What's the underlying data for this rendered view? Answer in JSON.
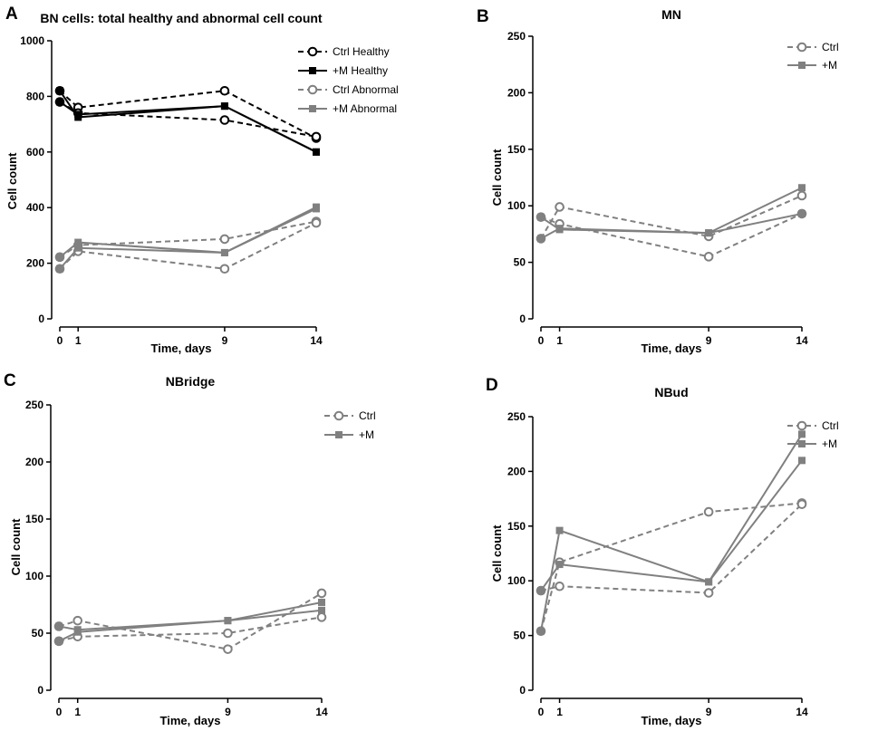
{
  "chart_data": [
    {
      "panel": "A",
      "type": "line",
      "title": "BN cells: total healthy and abnormal cell count",
      "xlabel": "Time, days",
      "ylabel": "Cell count",
      "xticks": [
        0,
        1,
        9,
        14
      ],
      "xlim": [
        0,
        14
      ],
      "ylim": [
        0,
        1000
      ],
      "yticks": [
        0,
        200,
        400,
        600,
        800,
        1000
      ],
      "legend_position": "top-right",
      "series": [
        {
          "name": "Ctrl Healthy",
          "color": "#000000",
          "dashed": true,
          "marker": "circle",
          "lines": [
            {
              "x": [
                0,
                1,
                9,
                14
              ],
              "y": [
                820,
                760,
                820,
                650
              ]
            },
            {
              "x": [
                0,
                1,
                9,
                14
              ],
              "y": [
                780,
                740,
                715,
                655
              ]
            }
          ]
        },
        {
          "name": "+M Healthy",
          "color": "#000000",
          "dashed": false,
          "marker": "square",
          "lines": [
            {
              "x": [
                0,
                1,
                9,
                14
              ],
              "y": [
                820,
                725,
                765,
                600
              ]
            },
            {
              "x": [
                0,
                1,
                9,
                14
              ],
              "y": [
                780,
                735,
                765,
                600
              ]
            }
          ]
        },
        {
          "name": "Ctrl Abnormal",
          "color": "#808080",
          "dashed": true,
          "marker": "circle",
          "lines": [
            {
              "x": [
                0,
                1,
                9,
                14
              ],
              "y": [
                222,
                265,
                287,
                350
              ]
            },
            {
              "x": [
                0,
                1,
                9,
                14
              ],
              "y": [
                180,
                243,
                180,
                345
              ]
            }
          ]
        },
        {
          "name": "+M Abnormal",
          "color": "#808080",
          "dashed": false,
          "marker": "square",
          "lines": [
            {
              "x": [
                0,
                1,
                9,
                14
              ],
              "y": [
                222,
                275,
                238,
                402
              ]
            },
            {
              "x": [
                0,
                1,
                9,
                14
              ],
              "y": [
                180,
                255,
                238,
                396
              ]
            }
          ]
        }
      ]
    },
    {
      "panel": "B",
      "type": "line",
      "title": "MN",
      "xlabel": "Time, days",
      "ylabel": "Cell count",
      "xticks": [
        0,
        1,
        9,
        14
      ],
      "xlim": [
        0,
        14
      ],
      "ylim": [
        0,
        250
      ],
      "yticks": [
        0,
        50,
        100,
        150,
        200,
        250
      ],
      "legend_position": "top-right",
      "series": [
        {
          "name": "Ctrl",
          "color": "#808080",
          "dashed": true,
          "marker": "circle",
          "lines": [
            {
              "x": [
                0,
                1,
                9,
                14
              ],
              "y": [
                71,
                99,
                73,
                109
              ]
            },
            {
              "x": [
                0,
                1,
                9,
                14
              ],
              "y": [
                90,
                84,
                55,
                93
              ]
            }
          ]
        },
        {
          "name": "+M",
          "color": "#808080",
          "dashed": false,
          "marker": "square",
          "lines": [
            {
              "x": [
                0,
                1,
                9,
                14
              ],
              "y": [
                71,
                80,
                76,
                116
              ]
            },
            {
              "x": [
                0,
                1,
                9,
                14
              ],
              "y": [
                90,
                79,
                76,
                93
              ]
            }
          ]
        }
      ]
    },
    {
      "panel": "C",
      "type": "line",
      "title": "NBridge",
      "xlabel": "Time, days",
      "ylabel": "Cell count",
      "xticks": [
        0,
        1,
        9,
        14
      ],
      "xlim": [
        0,
        14
      ],
      "ylim": [
        0,
        250
      ],
      "yticks": [
        0,
        50,
        100,
        150,
        200,
        250
      ],
      "legend_position": "top-right",
      "series": [
        {
          "name": "Ctrl",
          "color": "#808080",
          "dashed": true,
          "marker": "circle",
          "lines": [
            {
              "x": [
                0,
                1,
                9,
                14
              ],
              "y": [
                56,
                61,
                36,
                85
              ]
            },
            {
              "x": [
                0,
                1,
                9,
                14
              ],
              "y": [
                43,
                47,
                50,
                64
              ]
            }
          ]
        },
        {
          "name": "+M",
          "color": "#808080",
          "dashed": false,
          "marker": "square",
          "lines": [
            {
              "x": [
                0,
                1,
                9,
                14
              ],
              "y": [
                56,
                53,
                61,
                77
              ]
            },
            {
              "x": [
                0,
                1,
                9,
                14
              ],
              "y": [
                43,
                51,
                61,
                70
              ]
            }
          ]
        }
      ]
    },
    {
      "panel": "D",
      "type": "line",
      "title": "NBud",
      "xlabel": "Time, days",
      "ylabel": "Cell count",
      "xticks": [
        0,
        1,
        9,
        14
      ],
      "xlim": [
        0,
        14
      ],
      "ylim": [
        0,
        250
      ],
      "yticks": [
        0,
        50,
        100,
        150,
        200,
        250
      ],
      "legend_position": "top-right",
      "series": [
        {
          "name": "Ctrl",
          "color": "#808080",
          "dashed": true,
          "marker": "circle",
          "lines": [
            {
              "x": [
                0,
                1,
                9,
                14
              ],
              "y": [
                54,
                117,
                163,
                171
              ]
            },
            {
              "x": [
                0,
                1,
                9,
                14
              ],
              "y": [
                91,
                95,
                89,
                170
              ]
            }
          ]
        },
        {
          "name": "+M",
          "color": "#808080",
          "dashed": false,
          "marker": "square",
          "lines": [
            {
              "x": [
                0,
                1,
                9,
                14
              ],
              "y": [
                54,
                146,
                99,
                234
              ]
            },
            {
              "x": [
                0,
                1,
                9,
                14
              ],
              "y": [
                91,
                115,
                99,
                210
              ]
            }
          ]
        }
      ]
    }
  ]
}
